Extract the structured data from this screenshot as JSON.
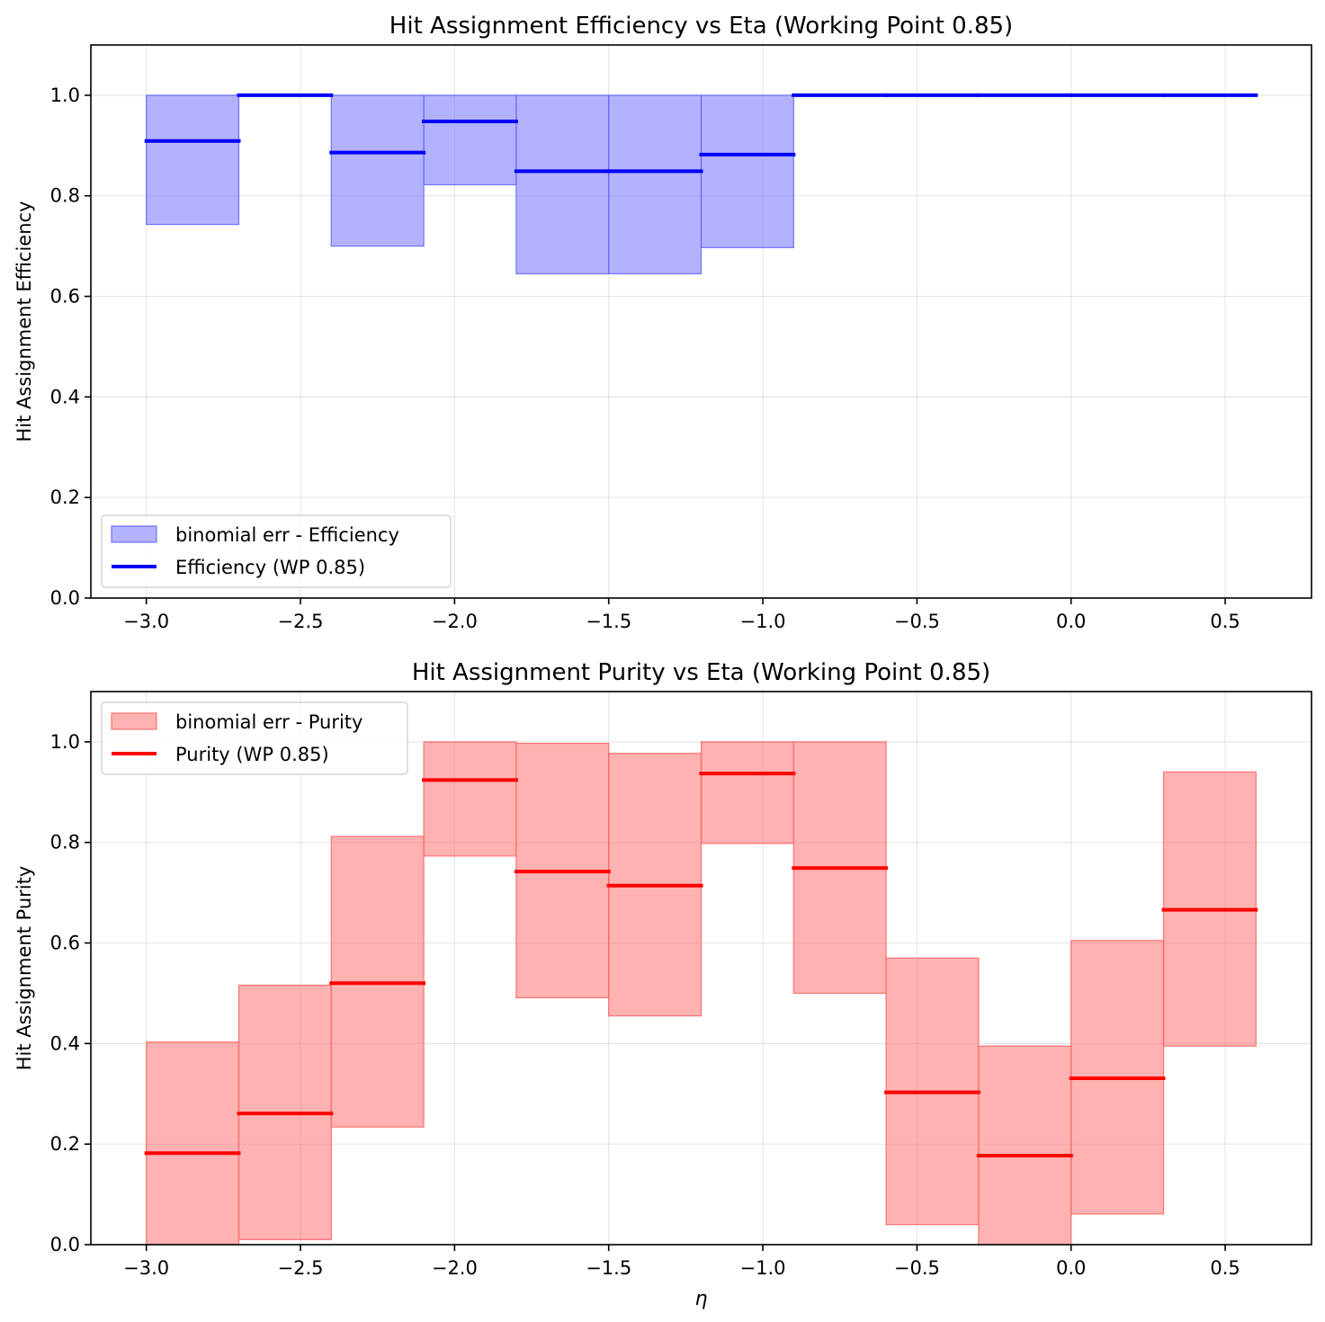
{
  "chart_data": [
    {
      "type": "area",
      "title": "Hit Assignment Efficiency vs Eta (Working Point 0.85)",
      "xlabel": "",
      "ylabel": "Hit Assignment Efficiency",
      "xlim": [
        -3.18,
        0.78
      ],
      "ylim": [
        0.0,
        1.1
      ],
      "xticks": [
        -3.0,
        -2.5,
        -2.0,
        -1.5,
        -1.0,
        -0.5,
        0.0,
        0.5
      ],
      "xtick_labels": [
        "−3.0",
        "−2.5",
        "−2.0",
        "−1.5",
        "−1.0",
        "−0.5",
        "0.0",
        "0.5"
      ],
      "yticks": [
        0.0,
        0.2,
        0.4,
        0.6,
        0.8,
        1.0
      ],
      "ytick_labels": [
        "0.0",
        "0.2",
        "0.4",
        "0.6",
        "0.8",
        "1.0"
      ],
      "grid": true,
      "legend_placement": "lower-left",
      "color": "#0000ff",
      "band_color": "#6666ff",
      "bin_edges": [
        -3.0,
        -2.7,
        -2.4,
        -2.1,
        -1.8,
        -1.5,
        -1.2,
        -0.9,
        -0.6,
        -0.3,
        0.0,
        0.3,
        0.6
      ],
      "series": [
        {
          "name": "Efficiency (WP 0.85)",
          "values": [
            0.909,
            1.0,
            0.886,
            0.948,
            0.849,
            0.849,
            0.882,
            1.0,
            1.0,
            1.0,
            1.0,
            1.0
          ]
        },
        {
          "name": "binomial err - Efficiency",
          "lower": [
            0.743,
            null,
            0.7,
            0.822,
            0.645,
            0.645,
            0.697,
            null,
            null,
            null,
            null,
            null
          ],
          "upper": [
            1.0,
            null,
            1.0,
            1.0,
            1.0,
            1.0,
            1.0,
            null,
            null,
            null,
            null,
            null
          ]
        }
      ]
    },
    {
      "type": "area",
      "title": "Hit Assignment Purity vs Eta (Working Point 0.85)",
      "xlabel": "η",
      "ylabel": "Hit Assignment Purity",
      "xlim": [
        -3.18,
        0.78
      ],
      "ylim": [
        0.0,
        1.1
      ],
      "xticks": [
        -3.0,
        -2.5,
        -2.0,
        -1.5,
        -1.0,
        -0.5,
        0.0,
        0.5
      ],
      "xtick_labels": [
        "−3.0",
        "−2.5",
        "−2.0",
        "−1.5",
        "−1.0",
        "−0.5",
        "0.0",
        "0.5"
      ],
      "yticks": [
        0.0,
        0.2,
        0.4,
        0.6,
        0.8,
        1.0
      ],
      "ytick_labels": [
        "0.0",
        "0.2",
        "0.4",
        "0.6",
        "0.8",
        "1.0"
      ],
      "grid": true,
      "legend_placement": "upper-left",
      "color": "#ff0000",
      "band_color": "#ff6666",
      "bin_edges": [
        -3.0,
        -2.7,
        -2.4,
        -2.1,
        -1.8,
        -1.5,
        -1.2,
        -0.9,
        -0.6,
        -0.3,
        0.0,
        0.3,
        0.6
      ],
      "series": [
        {
          "name": "Purity (WP 0.85)",
          "values": [
            0.182,
            0.261,
            0.52,
            0.924,
            0.742,
            0.714,
            0.937,
            0.749,
            0.303,
            0.177,
            0.331,
            0.666
          ]
        },
        {
          "name": "binomial err - Purity",
          "lower": [
            0.0,
            0.01,
            0.234,
            0.773,
            0.491,
            0.455,
            0.798,
            0.5,
            0.04,
            0.0,
            0.061,
            0.395
          ],
          "upper": [
            0.403,
            0.516,
            0.812,
            1.0,
            0.997,
            0.977,
            1.0,
            1.0,
            0.57,
            0.395,
            0.605,
            0.94
          ]
        }
      ]
    }
  ]
}
